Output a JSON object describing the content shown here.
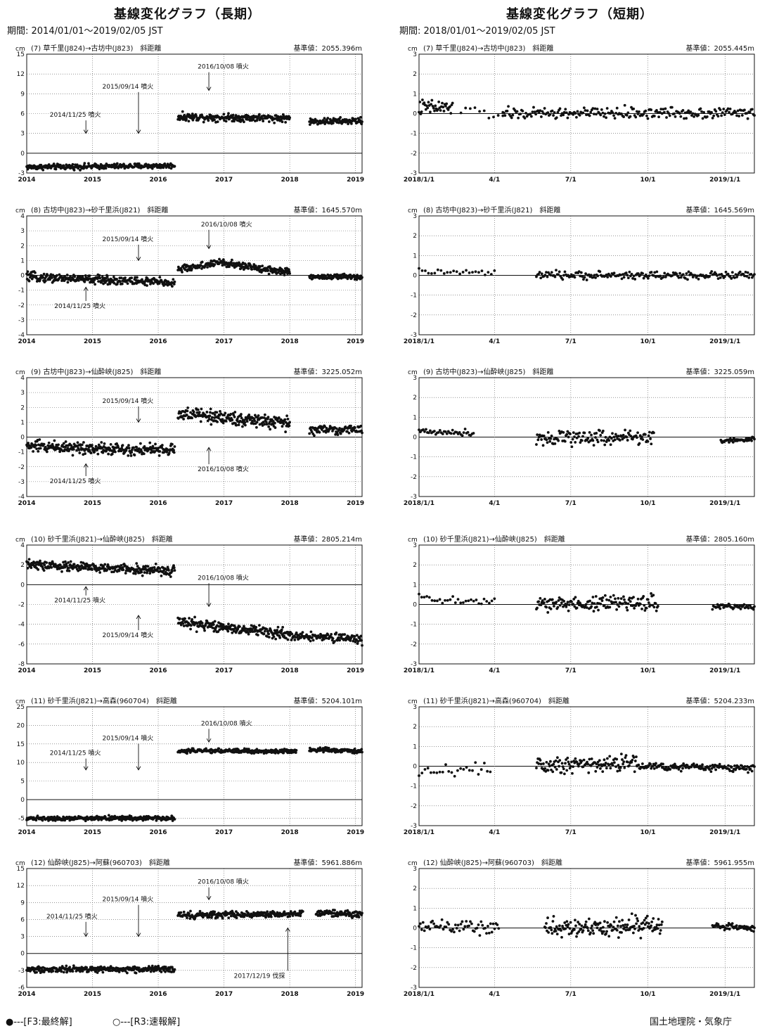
{
  "header": {
    "left_title": "基線変化グラフ（長期）",
    "right_title": "基線変化グラフ（短期）",
    "left_period": "期間: 2014/01/01〜2019/02/05 JST",
    "right_period": "期間: 2018/01/01〜2019/02/05 JST"
  },
  "footer": {
    "legend_f3": "●---[F3:最終解]",
    "legend_r3": "○---[R3:速報解]",
    "credit": "国土地理院・気象庁"
  },
  "colors": {
    "ink": "#111111",
    "grid": "#555555"
  },
  "chart_data": [
    {
      "type": "scatter",
      "panel": "long",
      "title": "(7) 草千里(J824)→古坊中(J823)　斜距離",
      "ylabel": "cm",
      "base": "基準値：2055.396m",
      "x_ticks": [
        "2014",
        "2015",
        "2016",
        "2017",
        "2018",
        "2019"
      ],
      "xlim": [
        2014,
        2019.1
      ],
      "ylim": [
        -3,
        15
      ],
      "y_ticks": [
        -3,
        0,
        3,
        6,
        9,
        12,
        15
      ],
      "segments": [
        {
          "x0": 2014.0,
          "x1": 2016.25,
          "y0": -2.1,
          "y1": -1.9,
          "noise": 0.25,
          "n": 300
        },
        {
          "x0": 2016.3,
          "x1": 2018.0,
          "y0": 5.5,
          "y1": 5.3,
          "noise": 0.35,
          "n": 240
        },
        {
          "x0": 2018.3,
          "x1": 2019.1,
          "y0": 4.8,
          "y1": 4.9,
          "noise": 0.3,
          "n": 110
        }
      ],
      "annotations": [
        {
          "label": "2014/11/25 噴火",
          "x": 2014.9,
          "y": 3.0,
          "label_y": 5.5,
          "label_x": 2014.35
        },
        {
          "label": "2015/09/14 噴火",
          "x": 2015.7,
          "y": 3.0,
          "label_y": 9.8,
          "label_x": 2015.15
        },
        {
          "label": "2016/10/08 噴火",
          "x": 2016.77,
          "y": 9.5,
          "label_y": 12.8,
          "label_x": 2016.6
        }
      ]
    },
    {
      "type": "scatter",
      "panel": "short",
      "title": "(7) 草千里(J824)→古坊中(J823)　斜距離",
      "ylabel": "cm",
      "base": "基準値：2055.445m",
      "x_ticks": [
        "2018/1/1",
        "4/1",
        "7/1",
        "10/1",
        "2019/1/1"
      ],
      "xlim": [
        0,
        400
      ],
      "ylim": [
        -3,
        3
      ],
      "y_ticks": [
        -3,
        -2,
        -1,
        0,
        1,
        2,
        3
      ],
      "segments": [
        {
          "x0": 0,
          "x1": 40,
          "y0": 0.3,
          "y1": 0.3,
          "noise": 0.25,
          "n": 40
        },
        {
          "x0": 50,
          "x1": 100,
          "y0": 0.1,
          "y1": 0.0,
          "noise": 0.2,
          "n": 10
        },
        {
          "x0": 100,
          "x1": 400,
          "y0": 0.0,
          "y1": 0.05,
          "noise": 0.18,
          "n": 230
        }
      ],
      "annotations": []
    },
    {
      "type": "scatter",
      "panel": "long",
      "title": "(8) 古坊中(J823)→砂千里浜(J821)　斜距離",
      "ylabel": "cm",
      "base": "基準値：1645.570m",
      "x_ticks": [
        "2014",
        "2015",
        "2016",
        "2017",
        "2018",
        "2019"
      ],
      "xlim": [
        2014,
        2019.1
      ],
      "ylim": [
        -4,
        4
      ],
      "y_ticks": [
        -4,
        -3,
        -2,
        -1,
        0,
        1,
        2,
        3,
        4
      ],
      "segments": [
        {
          "x0": 2014.0,
          "x1": 2016.25,
          "y0": -0.1,
          "y1": -0.5,
          "noise": 0.18,
          "n": 300
        },
        {
          "x0": 2016.3,
          "x1": 2017.0,
          "y0": 0.4,
          "y1": 0.9,
          "noise": 0.15,
          "n": 90
        },
        {
          "x0": 2017.0,
          "x1": 2018.0,
          "y0": 0.8,
          "y1": 0.2,
          "noise": 0.15,
          "n": 150
        },
        {
          "x0": 2018.3,
          "x1": 2019.1,
          "y0": -0.1,
          "y1": -0.1,
          "noise": 0.12,
          "n": 110
        }
      ],
      "annotations": [
        {
          "label": "2014/11/25 噴火",
          "x": 2014.9,
          "y": -0.8,
          "label_y": -2.2,
          "label_x": 2014.42
        },
        {
          "label": "2015/09/14 噴火",
          "x": 2015.7,
          "y": 1.0,
          "label_y": 2.3,
          "label_x": 2015.15
        },
        {
          "label": "2016/10/08 噴火",
          "x": 2016.77,
          "y": 1.8,
          "label_y": 3.3,
          "label_x": 2016.65
        }
      ]
    },
    {
      "type": "scatter",
      "panel": "short",
      "title": "(8) 古坊中(J823)→砂千里浜(J821)　斜距離",
      "ylabel": "cm",
      "base": "基準値：1645.569m",
      "x_ticks": [
        "2018/1/1",
        "4/1",
        "7/1",
        "10/1",
        "2019/1/1"
      ],
      "xlim": [
        0,
        400
      ],
      "ylim": [
        -3,
        3
      ],
      "y_ticks": [
        -3,
        -2,
        -1,
        0,
        1,
        2,
        3
      ],
      "segments": [
        {
          "x0": 0,
          "x1": 90,
          "y0": 0.2,
          "y1": 0.1,
          "noise": 0.1,
          "n": 25
        },
        {
          "x0": 140,
          "x1": 400,
          "y0": 0.0,
          "y1": 0.0,
          "noise": 0.12,
          "n": 200
        }
      ],
      "annotations": []
    },
    {
      "type": "scatter",
      "panel": "long",
      "title": "(9) 古坊中(J823)→仙酔峡(J825)　斜距離",
      "ylabel": "cm",
      "base": "基準値：3225.052m",
      "x_ticks": [
        "2014",
        "2015",
        "2016",
        "2017",
        "2018",
        "2019"
      ],
      "xlim": [
        2014,
        2019.1
      ],
      "ylim": [
        -4,
        4
      ],
      "y_ticks": [
        -4,
        -3,
        -2,
        -1,
        0,
        1,
        2,
        3,
        4
      ],
      "segments": [
        {
          "x0": 2014.0,
          "x1": 2016.25,
          "y0": -0.6,
          "y1": -0.9,
          "noise": 0.25,
          "n": 300
        },
        {
          "x0": 2016.3,
          "x1": 2018.0,
          "y0": 1.6,
          "y1": 0.9,
          "noise": 0.28,
          "n": 240
        },
        {
          "x0": 2018.3,
          "x1": 2019.1,
          "y0": 0.5,
          "y1": 0.5,
          "noise": 0.2,
          "n": 90
        }
      ],
      "annotations": [
        {
          "label": "2014/11/25 噴火",
          "x": 2014.9,
          "y": -1.8,
          "label_y": -3.1,
          "label_x": 2014.35
        },
        {
          "label": "2015/09/14 噴火",
          "x": 2015.7,
          "y": 1.0,
          "label_y": 2.3,
          "label_x": 2015.15
        },
        {
          "label": "2016/10/08 噴火",
          "x": 2016.77,
          "y": -0.7,
          "label_y": -2.3,
          "label_x": 2016.6
        }
      ]
    },
    {
      "type": "scatter",
      "panel": "short",
      "title": "(9) 古坊中(J823)→仙酔峡(J825)　斜距離",
      "ylabel": "cm",
      "base": "基準値：3225.059m",
      "x_ticks": [
        "2018/1/1",
        "4/1",
        "7/1",
        "10/1",
        "2019/1/1"
      ],
      "xlim": [
        0,
        400
      ],
      "ylim": [
        -3,
        3
      ],
      "y_ticks": [
        -3,
        -2,
        -1,
        0,
        1,
        2,
        3
      ],
      "segments": [
        {
          "x0": 0,
          "x1": 65,
          "y0": 0.3,
          "y1": 0.2,
          "noise": 0.1,
          "n": 40
        },
        {
          "x0": 140,
          "x1": 280,
          "y0": 0.0,
          "y1": 0.0,
          "noise": 0.25,
          "n": 140
        },
        {
          "x0": 360,
          "x1": 400,
          "y0": -0.2,
          "y1": -0.1,
          "noise": 0.06,
          "n": 50
        }
      ],
      "annotations": []
    },
    {
      "type": "scatter",
      "panel": "long",
      "title": "(10) 砂千里浜(J821)→仙酔峡(J825)　斜距離",
      "ylabel": "cm",
      "base": "基準値：2805.214m",
      "x_ticks": [
        "2014",
        "2015",
        "2016",
        "2017",
        "2018",
        "2019"
      ],
      "xlim": [
        2014,
        2019.1
      ],
      "ylim": [
        -8,
        4
      ],
      "y_ticks": [
        -8,
        -6,
        -4,
        -2,
        0,
        2,
        4
      ],
      "segments": [
        {
          "x0": 2014.0,
          "x1": 2016.25,
          "y0": 2.0,
          "y1": 1.4,
          "noise": 0.3,
          "n": 300
        },
        {
          "x0": 2016.3,
          "x1": 2018.0,
          "y0": -3.8,
          "y1": -5.0,
          "noise": 0.35,
          "n": 240
        },
        {
          "x0": 2018.0,
          "x1": 2019.1,
          "y0": -5.2,
          "y1": -5.5,
          "noise": 0.3,
          "n": 130
        }
      ],
      "annotations": [
        {
          "label": "2014/11/25 噴火",
          "x": 2014.9,
          "y": -0.2,
          "label_y": -1.8,
          "label_x": 2014.42
        },
        {
          "label": "2015/09/14 噴火",
          "x": 2015.7,
          "y": -3.1,
          "label_y": -5.3,
          "label_x": 2015.15
        },
        {
          "label": "2016/10/08 噴火",
          "x": 2016.77,
          "y": -2.2,
          "label_y": 0.5,
          "label_x": 2016.6
        }
      ]
    },
    {
      "type": "scatter",
      "panel": "short",
      "title": "(10) 砂千里浜(J821)→仙酔峡(J825)　斜距離",
      "ylabel": "cm",
      "base": "基準値：2805.160m",
      "x_ticks": [
        "2018/1/1",
        "4/1",
        "7/1",
        "10/1",
        "2019/1/1"
      ],
      "xlim": [
        0,
        400
      ],
      "ylim": [
        -3,
        3
      ],
      "y_ticks": [
        -3,
        -2,
        -1,
        0,
        1,
        2,
        3
      ],
      "segments": [
        {
          "x0": 0,
          "x1": 90,
          "y0": 0.3,
          "y1": 0.1,
          "noise": 0.15,
          "n": 30
        },
        {
          "x0": 140,
          "x1": 285,
          "y0": 0.0,
          "y1": 0.1,
          "noise": 0.25,
          "n": 160
        },
        {
          "x0": 350,
          "x1": 400,
          "y0": -0.1,
          "y1": -0.1,
          "noise": 0.08,
          "n": 50
        }
      ],
      "annotations": []
    },
    {
      "type": "scatter",
      "panel": "long",
      "title": "(11) 砂千里浜(J821)→高森(960704)　斜距離",
      "ylabel": "cm",
      "base": "基準値：5204.101m",
      "x_ticks": [
        "2014",
        "2015",
        "2016",
        "2017",
        "2018",
        "2019"
      ],
      "xlim": [
        2014,
        2019.1
      ],
      "ylim": [
        -7,
        25
      ],
      "y_ticks": [
        -5,
        0,
        5,
        10,
        15,
        20,
        25
      ],
      "segments": [
        {
          "x0": 2014.0,
          "x1": 2016.25,
          "y0": -5.0,
          "y1": -5.0,
          "noise": 0.35,
          "n": 300
        },
        {
          "x0": 2016.3,
          "x1": 2018.1,
          "y0": 13.2,
          "y1": 13.0,
          "noise": 0.35,
          "n": 250
        },
        {
          "x0": 2018.3,
          "x1": 2019.1,
          "y0": 13.5,
          "y1": 13.0,
          "noise": 0.35,
          "n": 110
        }
      ],
      "annotations": [
        {
          "label": "2014/11/25 噴火",
          "x": 2014.9,
          "y": 8.0,
          "label_y": 12.0,
          "label_x": 2014.35
        },
        {
          "label": "2015/09/14 噴火",
          "x": 2015.7,
          "y": 8.0,
          "label_y": 16.0,
          "label_x": 2015.15
        },
        {
          "label": "2016/10/08 噴火",
          "x": 2016.77,
          "y": 15.5,
          "label_y": 20.0,
          "label_x": 2016.65
        }
      ]
    },
    {
      "type": "scatter",
      "panel": "short",
      "title": "(11) 砂千里浜(J821)→高森(960704)　斜距離",
      "ylabel": "cm",
      "base": "基準値：5204.233m",
      "x_ticks": [
        "2018/1/1",
        "4/1",
        "7/1",
        "10/1",
        "2019/1/1"
      ],
      "xlim": [
        0,
        400
      ],
      "ylim": [
        -3,
        3
      ],
      "y_ticks": [
        -3,
        -2,
        -1,
        0,
        1,
        2,
        3
      ],
      "segments": [
        {
          "x0": 0,
          "x1": 85,
          "y0": -0.3,
          "y1": -0.1,
          "noise": 0.2,
          "n": 25
        },
        {
          "x0": 140,
          "x1": 260,
          "y0": 0.1,
          "y1": 0.2,
          "noise": 0.3,
          "n": 130
        },
        {
          "x0": 260,
          "x1": 400,
          "y0": 0.0,
          "y1": -0.1,
          "noise": 0.12,
          "n": 150
        }
      ],
      "annotations": []
    },
    {
      "type": "scatter",
      "panel": "long",
      "title": "(12) 仙酔峡(J825)→阿蘇(960703)　斜距離",
      "ylabel": "cm",
      "base": "基準値：5961.886m",
      "x_ticks": [
        "2014",
        "2015",
        "2016",
        "2017",
        "2018",
        "2019"
      ],
      "xlim": [
        2014,
        2019.1
      ],
      "ylim": [
        -6,
        15
      ],
      "y_ticks": [
        -6,
        -3,
        0,
        3,
        6,
        9,
        12,
        15
      ],
      "segments": [
        {
          "x0": 2014.0,
          "x1": 2016.25,
          "y0": -2.8,
          "y1": -2.8,
          "noise": 0.35,
          "n": 300
        },
        {
          "x0": 2016.3,
          "x1": 2018.2,
          "y0": 6.8,
          "y1": 7.0,
          "noise": 0.35,
          "n": 250
        },
        {
          "x0": 2018.4,
          "x1": 2019.1,
          "y0": 7.0,
          "y1": 7.0,
          "noise": 0.35,
          "n": 90
        }
      ],
      "annotations": [
        {
          "label": "2014/11/25 噴火",
          "x": 2014.9,
          "y": 3.0,
          "label_y": 6.2,
          "label_x": 2014.3
        },
        {
          "label": "2015/09/14 噴火",
          "x": 2015.7,
          "y": 3.0,
          "label_y": 9.2,
          "label_x": 2015.15
        },
        {
          "label": "2016/10/08 噴火",
          "x": 2016.77,
          "y": 9.5,
          "label_y": 12.3,
          "label_x": 2016.6
        },
        {
          "label": "2017/12/19 伐採",
          "x": 2017.97,
          "y": 4.5,
          "label_y": -4.3,
          "label_x": 2017.15
        }
      ]
    },
    {
      "type": "scatter",
      "panel": "short",
      "title": "(12) 仙酔峡(J825)→阿蘇(960703)　斜距離",
      "ylabel": "cm",
      "base": "基準値：5961.955m",
      "x_ticks": [
        "2018/1/1",
        "4/1",
        "7/1",
        "10/1",
        "2019/1/1"
      ],
      "xlim": [
        0,
        400
      ],
      "ylim": [
        -3,
        3
      ],
      "y_ticks": [
        -3,
        -2,
        -1,
        0,
        1,
        2,
        3
      ],
      "segments": [
        {
          "x0": 0,
          "x1": 95,
          "y0": 0.1,
          "y1": 0.0,
          "noise": 0.2,
          "n": 60
        },
        {
          "x0": 150,
          "x1": 290,
          "y0": 0.0,
          "y1": 0.1,
          "noise": 0.3,
          "n": 160
        },
        {
          "x0": 350,
          "x1": 400,
          "y0": 0.1,
          "y1": 0.0,
          "noise": 0.1,
          "n": 60
        }
      ],
      "annotations": []
    }
  ]
}
